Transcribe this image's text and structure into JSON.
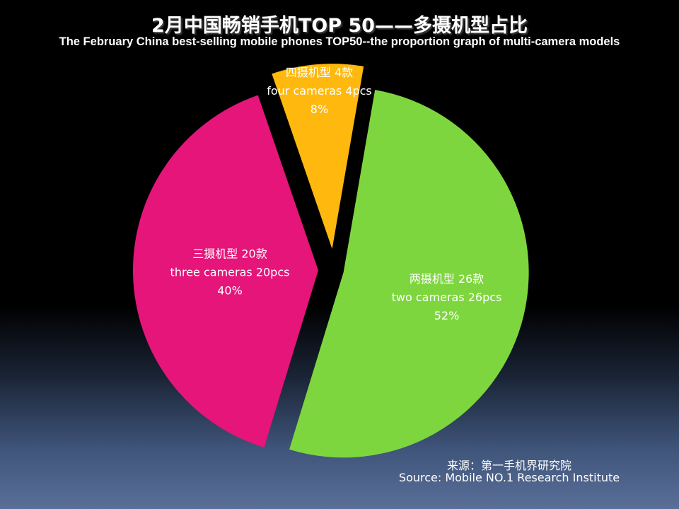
{
  "chart_data": {
    "type": "pie",
    "title": "2月中国畅销手机TOP 50——多摄机型占比",
    "subtitle": "The February China best-selling mobile phones TOP50--the proportion graph of multi-camera models",
    "slices": [
      {
        "label_cn": "四摄机型 4款",
        "label_en": "four cameras 4pcs",
        "count": 4,
        "percent": 8,
        "percent_label": "8%",
        "color": "#ffb80e"
      },
      {
        "label_cn": "两摄机型 26款",
        "label_en": "two cameras 26pcs",
        "count": 26,
        "percent": 52,
        "percent_label": "52%",
        "color": "#7ed63f"
      },
      {
        "label_cn": "三摄机型 20款",
        "label_en": "three cameras 20pcs",
        "count": 20,
        "percent": 40,
        "percent_label": "40%",
        "color": "#e5157a"
      }
    ]
  },
  "source": {
    "cn": "来源：第一手机界研究院",
    "en": "Source: Mobile NO.1 Research Institute"
  }
}
